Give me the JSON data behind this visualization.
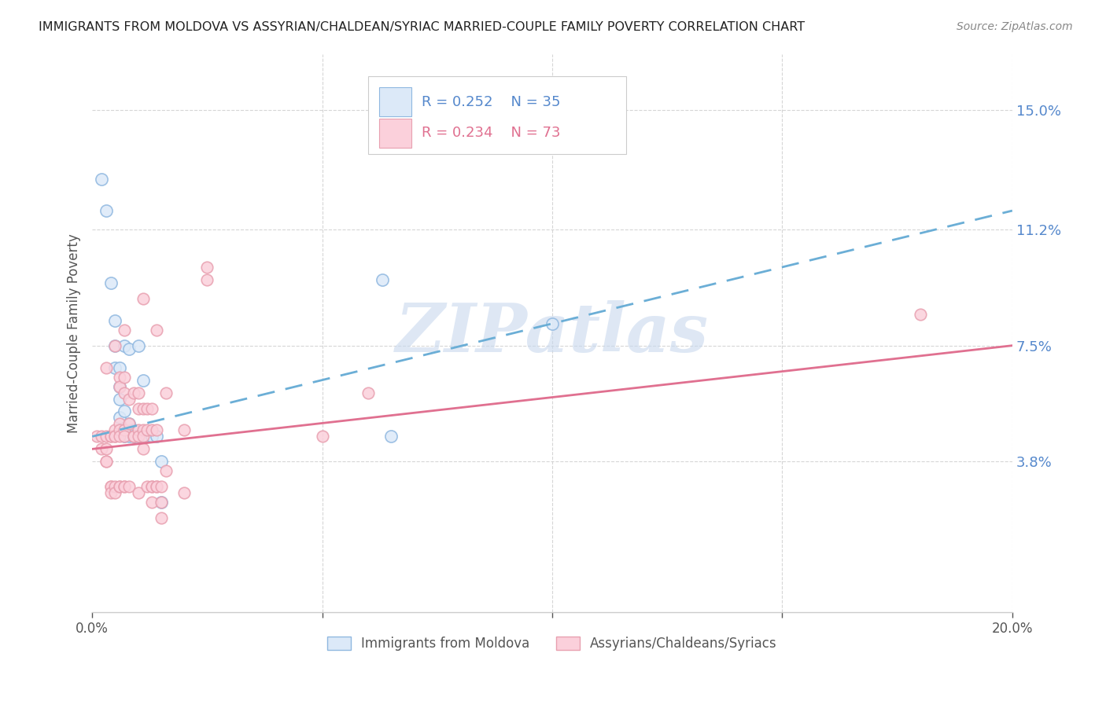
{
  "title": "IMMIGRANTS FROM MOLDOVA VS ASSYRIAN/CHALDEAN/SYRIAC MARRIED-COUPLE FAMILY POVERTY CORRELATION CHART",
  "source": "Source: ZipAtlas.com",
  "ylabel": "Married-Couple Family Poverty",
  "ytick_labels": [
    "3.8%",
    "7.5%",
    "11.2%",
    "15.0%"
  ],
  "ytick_values": [
    0.038,
    0.075,
    0.112,
    0.15
  ],
  "xlim": [
    0.0,
    0.2
  ],
  "ylim": [
    -0.01,
    0.168
  ],
  "legend_blue_R": "R = 0.252",
  "legend_blue_N": "N = 35",
  "legend_pink_R": "R = 0.234",
  "legend_pink_N": "N = 73",
  "blue_fill": "#dce9f8",
  "blue_edge": "#90b8e0",
  "blue_line": "#6baed6",
  "pink_fill": "#fbd0db",
  "pink_edge": "#e8a0b0",
  "pink_line": "#e07090",
  "blue_scatter": [
    [
      0.002,
      0.128
    ],
    [
      0.003,
      0.118
    ],
    [
      0.004,
      0.095
    ],
    [
      0.005,
      0.083
    ],
    [
      0.005,
      0.075
    ],
    [
      0.005,
      0.068
    ],
    [
      0.006,
      0.062
    ],
    [
      0.006,
      0.068
    ],
    [
      0.006,
      0.058
    ],
    [
      0.006,
      0.052
    ],
    [
      0.007,
      0.075
    ],
    [
      0.007,
      0.054
    ],
    [
      0.007,
      0.048
    ],
    [
      0.007,
      0.048
    ],
    [
      0.007,
      0.046
    ],
    [
      0.008,
      0.074
    ],
    [
      0.008,
      0.048
    ],
    [
      0.008,
      0.046
    ],
    [
      0.008,
      0.05
    ],
    [
      0.009,
      0.048
    ],
    [
      0.009,
      0.046
    ],
    [
      0.009,
      0.046
    ],
    [
      0.01,
      0.075
    ],
    [
      0.01,
      0.046
    ],
    [
      0.011,
      0.064
    ],
    [
      0.012,
      0.046
    ],
    [
      0.012,
      0.046
    ],
    [
      0.013,
      0.046
    ],
    [
      0.013,
      0.046
    ],
    [
      0.014,
      0.046
    ],
    [
      0.015,
      0.038
    ],
    [
      0.015,
      0.025
    ],
    [
      0.063,
      0.096
    ],
    [
      0.1,
      0.082
    ],
    [
      0.065,
      0.046
    ]
  ],
  "pink_scatter": [
    [
      0.001,
      0.046
    ],
    [
      0.002,
      0.046
    ],
    [
      0.002,
      0.042
    ],
    [
      0.003,
      0.068
    ],
    [
      0.003,
      0.046
    ],
    [
      0.003,
      0.042
    ],
    [
      0.003,
      0.038
    ],
    [
      0.003,
      0.038
    ],
    [
      0.004,
      0.046
    ],
    [
      0.004,
      0.046
    ],
    [
      0.004,
      0.03
    ],
    [
      0.004,
      0.03
    ],
    [
      0.004,
      0.028
    ],
    [
      0.005,
      0.075
    ],
    [
      0.005,
      0.048
    ],
    [
      0.005,
      0.046
    ],
    [
      0.005,
      0.046
    ],
    [
      0.005,
      0.03
    ],
    [
      0.005,
      0.028
    ],
    [
      0.006,
      0.065
    ],
    [
      0.006,
      0.062
    ],
    [
      0.006,
      0.05
    ],
    [
      0.006,
      0.048
    ],
    [
      0.006,
      0.046
    ],
    [
      0.006,
      0.03
    ],
    [
      0.006,
      0.03
    ],
    [
      0.007,
      0.08
    ],
    [
      0.007,
      0.065
    ],
    [
      0.007,
      0.06
    ],
    [
      0.007,
      0.048
    ],
    [
      0.007,
      0.046
    ],
    [
      0.007,
      0.03
    ],
    [
      0.007,
      0.03
    ],
    [
      0.008,
      0.058
    ],
    [
      0.008,
      0.05
    ],
    [
      0.008,
      0.03
    ],
    [
      0.009,
      0.06
    ],
    [
      0.009,
      0.046
    ],
    [
      0.009,
      0.046
    ],
    [
      0.01,
      0.06
    ],
    [
      0.01,
      0.055
    ],
    [
      0.01,
      0.048
    ],
    [
      0.01,
      0.046
    ],
    [
      0.01,
      0.028
    ],
    [
      0.011,
      0.09
    ],
    [
      0.011,
      0.055
    ],
    [
      0.011,
      0.048
    ],
    [
      0.011,
      0.046
    ],
    [
      0.011,
      0.042
    ],
    [
      0.012,
      0.055
    ],
    [
      0.012,
      0.048
    ],
    [
      0.012,
      0.03
    ],
    [
      0.013,
      0.055
    ],
    [
      0.013,
      0.048
    ],
    [
      0.013,
      0.03
    ],
    [
      0.013,
      0.03
    ],
    [
      0.013,
      0.025
    ],
    [
      0.014,
      0.08
    ],
    [
      0.014,
      0.048
    ],
    [
      0.014,
      0.03
    ],
    [
      0.014,
      0.03
    ],
    [
      0.015,
      0.03
    ],
    [
      0.015,
      0.025
    ],
    [
      0.015,
      0.02
    ],
    [
      0.016,
      0.06
    ],
    [
      0.016,
      0.035
    ],
    [
      0.02,
      0.048
    ],
    [
      0.02,
      0.028
    ],
    [
      0.025,
      0.1
    ],
    [
      0.025,
      0.096
    ],
    [
      0.05,
      0.046
    ],
    [
      0.06,
      0.06
    ],
    [
      0.18,
      0.085
    ]
  ],
  "watermark_text": "ZIPatlas",
  "watermark_color": "#c8d8ee",
  "background_color": "#ffffff",
  "grid_color": "#cccccc",
  "label_color": "#555555",
  "ytick_color": "#5588cc"
}
